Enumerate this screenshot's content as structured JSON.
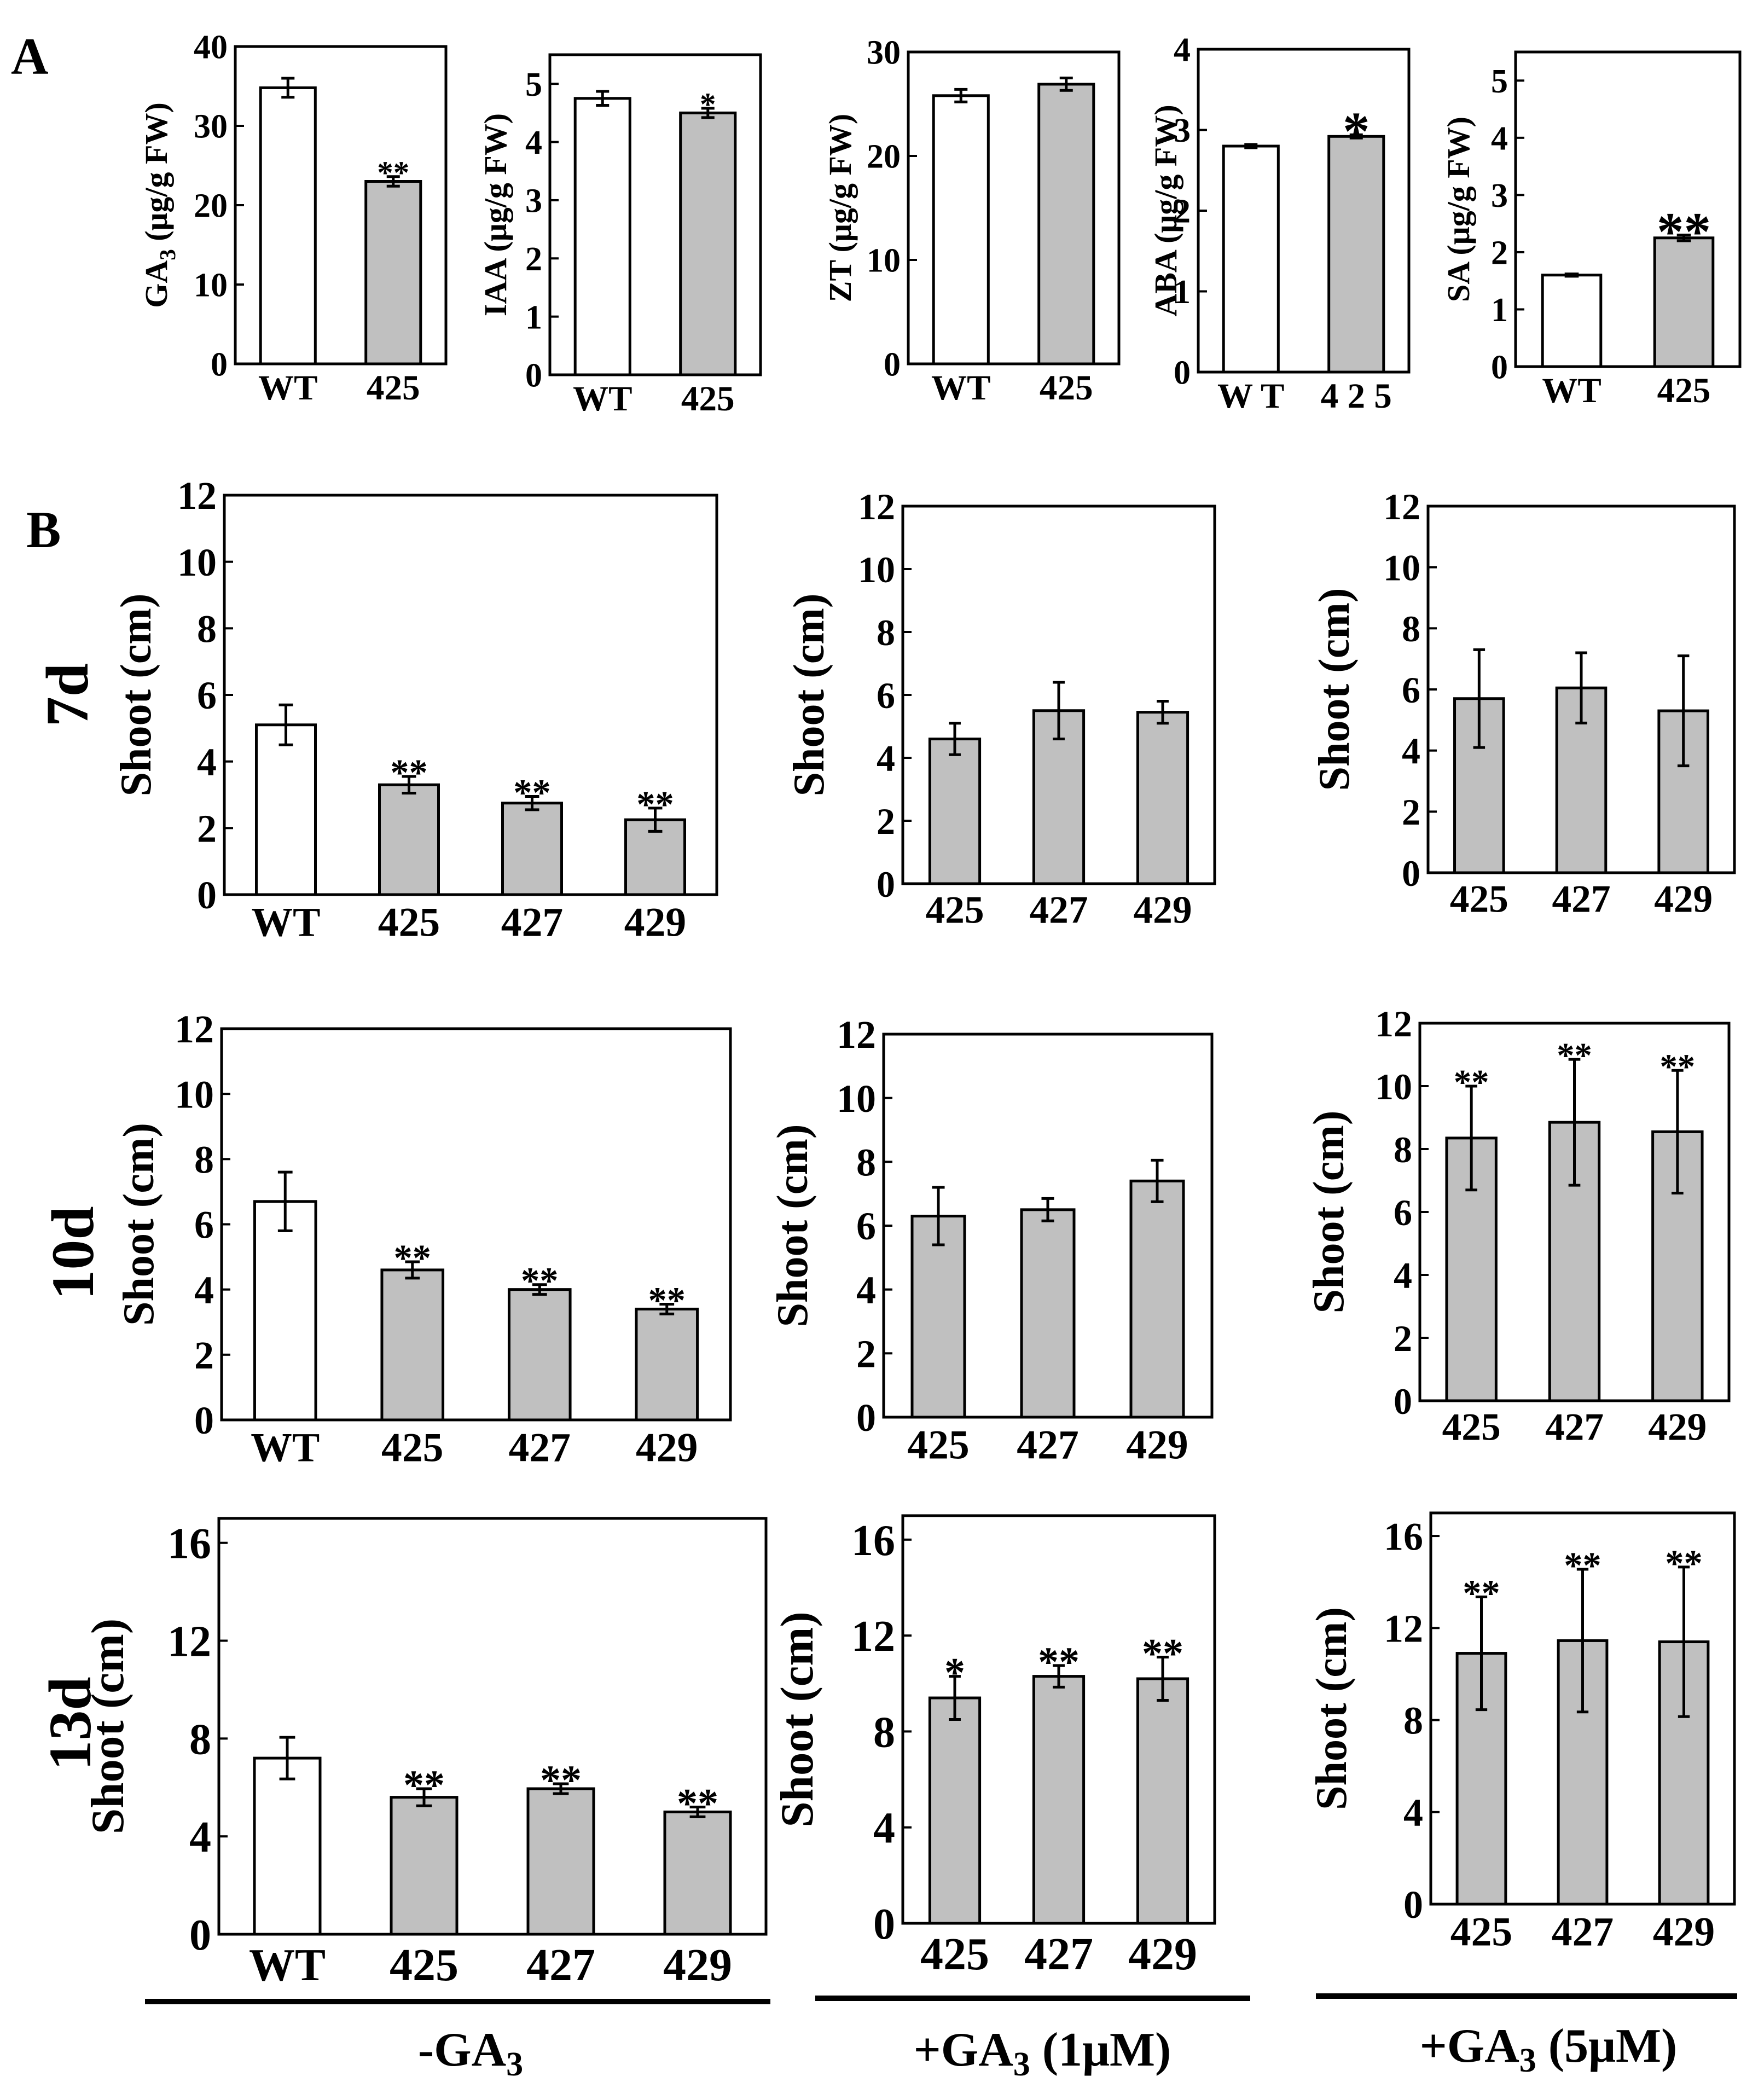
{
  "figure": {
    "panel_labels": [
      "A",
      "B"
    ],
    "row_labels": [
      "7d",
      "10d",
      "13d"
    ],
    "group_labels": [
      "-GA",
      "+GA",
      "+GA"
    ],
    "group_subscripts": [
      "3",
      "3",
      "3"
    ],
    "group_suffixes": [
      "",
      " (1μM)",
      " (5μM)"
    ]
  },
  "colors": {
    "wt_fill": "#ffffff",
    "mutant_fill": "#c0c0c0",
    "stroke": "#000000"
  },
  "chart_data": [
    {
      "id": "ga3",
      "type": "bar",
      "ylabel": "GA",
      "ylabel_sub": "3",
      "ylabel_rest": " (μg/g FW)",
      "ylim": [
        0,
        40
      ],
      "yticks": [
        "0",
        "10",
        "20",
        "30",
        "40"
      ],
      "categories": [
        "WT",
        "425"
      ],
      "values": [
        34.8,
        23.0
      ],
      "errors": [
        1.2,
        0.6
      ],
      "sig": [
        "",
        "**"
      ],
      "fills": [
        "wt",
        "mut"
      ]
    },
    {
      "id": "iaa",
      "type": "bar",
      "ylabel": "IAA (μg/g FW)",
      "ylim": [
        0,
        5.5
      ],
      "yticks": [
        "0",
        "1",
        "2",
        "3",
        "4",
        "5"
      ],
      "categories": [
        "WT",
        "425"
      ],
      "values": [
        4.75,
        4.5
      ],
      "errors": [
        0.12,
        0.08
      ],
      "sig": [
        "",
        "*"
      ],
      "fills": [
        "wt",
        "mut"
      ]
    },
    {
      "id": "zt",
      "type": "bar",
      "ylabel": "ZT (μg/g FW)",
      "ylim": [
        0,
        30
      ],
      "yticks": [
        "0",
        "10",
        "20",
        "30"
      ],
      "categories": [
        "WT",
        "425"
      ],
      "values": [
        25.8,
        26.9
      ],
      "errors": [
        0.6,
        0.6
      ],
      "sig": [
        "",
        ""
      ],
      "fills": [
        "wt",
        "mut"
      ]
    },
    {
      "id": "aba",
      "type": "bar",
      "ylabel": "ABA (μg/g FW)",
      "ylim": [
        0,
        4
      ],
      "yticks": [
        "0",
        "1",
        "2",
        "3",
        "4"
      ],
      "categories": [
        "W T",
        "4 2 5"
      ],
      "values": [
        2.8,
        2.92
      ],
      "errors": [
        0.02,
        0.02
      ],
      "sig": [
        "",
        "*"
      ],
      "fills": [
        "wt",
        "mut"
      ]
    },
    {
      "id": "sa",
      "type": "bar",
      "ylabel": "SA (μg/g FW)",
      "ylim": [
        0,
        5.5
      ],
      "yticks": [
        "0",
        "1",
        "2",
        "3",
        "4",
        "5"
      ],
      "categories": [
        "WT",
        "425"
      ],
      "values": [
        1.6,
        2.25
      ],
      "errors": [
        0.02,
        0.05
      ],
      "sig": [
        "",
        "**"
      ],
      "fills": [
        "wt",
        "mut"
      ]
    },
    {
      "id": "d7_minus",
      "type": "bar",
      "ylabel": "Shoot (cm)",
      "ylim": [
        0,
        12
      ],
      "yticks": [
        "0",
        "2",
        "4",
        "6",
        "8",
        "10",
        "12"
      ],
      "categories": [
        "WT",
        "425",
        "427",
        "429"
      ],
      "values": [
        5.1,
        3.3,
        2.75,
        2.25
      ],
      "errors": [
        0.6,
        0.25,
        0.2,
        0.35
      ],
      "sig": [
        "",
        "**",
        "**",
        "**"
      ],
      "fills": [
        "wt",
        "mut",
        "mut",
        "mut"
      ]
    },
    {
      "id": "d7_plus1",
      "type": "bar",
      "ylabel": "Shoot (cm)",
      "ylim": [
        0,
        12
      ],
      "yticks": [
        "0",
        "2",
        "4",
        "6",
        "8",
        "10",
        "12"
      ],
      "categories": [
        "425",
        "427",
        "429"
      ],
      "values": [
        4.6,
        5.5,
        5.45
      ],
      "errors": [
        0.5,
        0.9,
        0.35
      ],
      "sig": [
        "",
        "",
        ""
      ],
      "fills": [
        "mut",
        "mut",
        "mut"
      ]
    },
    {
      "id": "d7_plus5",
      "type": "bar",
      "ylabel": "Shoot (cm)",
      "ylim": [
        0,
        12
      ],
      "yticks": [
        "0",
        "2",
        "4",
        "6",
        "8",
        "10",
        "12"
      ],
      "categories": [
        "425",
        "427",
        "429"
      ],
      "values": [
        5.7,
        6.05,
        5.3
      ],
      "errors": [
        1.6,
        1.15,
        1.8
      ],
      "sig": [
        "",
        "",
        ""
      ],
      "fills": [
        "mut",
        "mut",
        "mut"
      ]
    },
    {
      "id": "d10_minus",
      "type": "bar",
      "ylabel": "Shoot (cm)",
      "ylim": [
        0,
        12
      ],
      "yticks": [
        "0",
        "2",
        "4",
        "6",
        "8",
        "10",
        "12"
      ],
      "categories": [
        "WT",
        "425",
        "427",
        "429"
      ],
      "values": [
        6.7,
        4.6,
        4.0,
        3.4
      ],
      "errors": [
        0.9,
        0.25,
        0.15,
        0.15
      ],
      "sig": [
        "",
        "**",
        "**",
        "**"
      ],
      "fills": [
        "wt",
        "mut",
        "mut",
        "mut"
      ]
    },
    {
      "id": "d10_plus1",
      "type": "bar",
      "ylabel": "Shoot (cm)",
      "ylim": [
        0,
        12
      ],
      "yticks": [
        "0",
        "2",
        "4",
        "6",
        "8",
        "10",
        "12"
      ],
      "categories": [
        "425",
        "427",
        "429"
      ],
      "values": [
        6.3,
        6.5,
        7.4
      ],
      "errors": [
        0.9,
        0.35,
        0.65
      ],
      "sig": [
        "",
        "",
        ""
      ],
      "fills": [
        "mut",
        "mut",
        "mut"
      ]
    },
    {
      "id": "d10_plus5",
      "type": "bar",
      "ylabel": "Shoot (cm)",
      "ylim": [
        0,
        12
      ],
      "yticks": [
        "0",
        "2",
        "4",
        "6",
        "8",
        "10",
        "12"
      ],
      "categories": [
        "425",
        "427",
        "429"
      ],
      "values": [
        8.35,
        8.85,
        8.55
      ],
      "errors": [
        1.65,
        2.0,
        1.95
      ],
      "sig": [
        "**",
        "**",
        "**"
      ],
      "fills": [
        "mut",
        "mut",
        "mut"
      ]
    },
    {
      "id": "d13_minus",
      "type": "bar",
      "ylabel": "Shoot (cm)",
      "ylim": [
        0,
        17
      ],
      "yticks": [
        "0",
        "4",
        "8",
        "12",
        "16"
      ],
      "categories": [
        "WT",
        "425",
        "427",
        "429"
      ],
      "values": [
        7.2,
        5.6,
        5.95,
        5.0
      ],
      "errors": [
        0.85,
        0.35,
        0.2,
        0.2
      ],
      "sig": [
        "",
        "**",
        "**",
        "**"
      ],
      "fills": [
        "wt",
        "mut",
        "mut",
        "mut"
      ]
    },
    {
      "id": "d13_plus1",
      "type": "bar",
      "ylabel": "Shoot (cm)",
      "ylim": [
        0,
        17
      ],
      "yticks": [
        "0",
        "4",
        "8",
        "12",
        "16"
      ],
      "categories": [
        "425",
        "427",
        "429"
      ],
      "values": [
        9.4,
        10.3,
        10.2
      ],
      "errors": [
        0.9,
        0.45,
        0.9
      ],
      "sig": [
        "*",
        "**",
        "**"
      ],
      "fills": [
        "mut",
        "mut",
        "mut"
      ]
    },
    {
      "id": "d13_plus5",
      "type": "bar",
      "ylabel": "Shoot (cm)",
      "ylim": [
        0,
        17
      ],
      "yticks": [
        "0",
        "4",
        "8",
        "12",
        "16"
      ],
      "categories": [
        "425",
        "427",
        "429"
      ],
      "values": [
        10.9,
        11.45,
        11.4
      ],
      "errors": [
        2.45,
        3.1,
        3.25
      ],
      "sig": [
        "**",
        "**",
        "**"
      ],
      "fills": [
        "mut",
        "mut",
        "mut"
      ]
    }
  ]
}
